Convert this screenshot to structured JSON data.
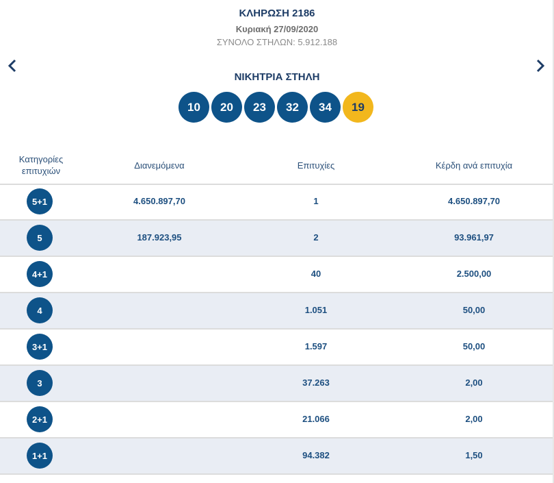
{
  "draw": {
    "title": "ΚΛΗΡΩΣΗ 2186",
    "date": "Κυριακή 27/09/2020",
    "total_columns": "ΣΥΝΟΛΟ ΣΤΗΛΩΝ: 5.912.188",
    "winning_label": "ΝΙΚΗΤΡΙΑ ΣΤΗΛΗ",
    "numbers": [
      "10",
      "20",
      "23",
      "32",
      "34"
    ],
    "joker": "19"
  },
  "nav": {
    "prev_icon": "chevron-left-icon",
    "next_icon": "chevron-right-icon"
  },
  "table": {
    "headers": {
      "category": "Κατηγορίες επιτυχιών",
      "distributed": "Διανεμόμενα",
      "winners": "Επιτυχίες",
      "prize": "Κέρδη ανά επιτυχία"
    },
    "rows": [
      {
        "category": "5+1",
        "distributed": "4.650.897,70",
        "winners": "1",
        "prize": "4.650.897,70"
      },
      {
        "category": "5",
        "distributed": "187.923,95",
        "winners": "2",
        "prize": "93.961,97"
      },
      {
        "category": "4+1",
        "distributed": "",
        "winners": "40",
        "prize": "2.500,00"
      },
      {
        "category": "4",
        "distributed": "",
        "winners": "1.051",
        "prize": "50,00"
      },
      {
        "category": "3+1",
        "distributed": "",
        "winners": "1.597",
        "prize": "50,00"
      },
      {
        "category": "3",
        "distributed": "",
        "winners": "37.263",
        "prize": "2,00"
      },
      {
        "category": "2+1",
        "distributed": "",
        "winners": "21.066",
        "prize": "2,00"
      },
      {
        "category": "1+1",
        "distributed": "",
        "winners": "94.382",
        "prize": "1,50"
      }
    ]
  },
  "colors": {
    "ball": "#0e5389",
    "joker_ball": "#f2b71d",
    "alt_row": "#e9edf4",
    "title": "#1d3c66"
  }
}
